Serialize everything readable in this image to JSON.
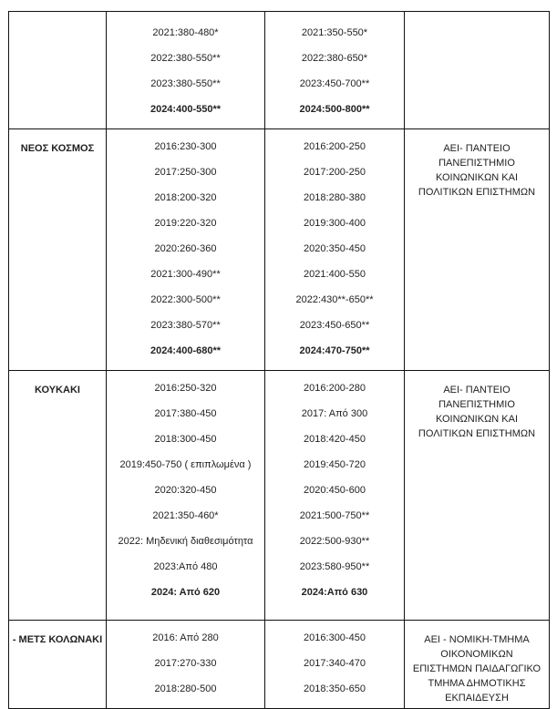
{
  "rows": [
    {
      "area": "",
      "col1": [
        {
          "text": "2021:380-480*"
        },
        {
          "text": "2022:380-550**"
        },
        {
          "text": "2023:380-550**"
        },
        {
          "text": "2024:400-550**",
          "bold": true
        }
      ],
      "col2": [
        {
          "text": "2021:350-550*"
        },
        {
          "text": "2022:380-650*"
        },
        {
          "text": "2023:450-700**"
        },
        {
          "text": "2024:500-800**",
          "bold": true
        }
      ],
      "institution": ""
    },
    {
      "area": "ΝΕΟΣ ΚΟΣΜΟΣ",
      "col1": [
        {
          "text": "2016:230-300"
        },
        {
          "text": "2017:250-300"
        },
        {
          "text": "2018:200-320"
        },
        {
          "text": "2019:220-320"
        },
        {
          "text": "2020:260-360"
        },
        {
          "text": "2021:300-490**"
        },
        {
          "text": "2022:300-500**"
        },
        {
          "text": "2023:380-570**"
        },
        {
          "text": "2024:400-680**",
          "bold": true
        }
      ],
      "col2": [
        {
          "text": "2016:200-250"
        },
        {
          "text": "2017:200-250"
        },
        {
          "text": "2018:280-380"
        },
        {
          "text": "2019:300-400"
        },
        {
          "text": "2020:350-450"
        },
        {
          "text": "2021:400-550"
        },
        {
          "text": "2022:430**-650**"
        },
        {
          "text": "2023:450-650**"
        },
        {
          "text": "2024:470-750**",
          "bold": true
        }
      ],
      "institution": "ΑΕΙ- ΠΑΝΤΕΙΟ ΠΑΝΕΠΙΣΤΗΜΙΟ ΚΟΙΝΩΝΙΚΩΝ ΚΑΙ ΠΟΛΙΤΙΚΩΝ ΕΠΙΣΤΗΜΩΝ"
    },
    {
      "area": "ΚΟΥΚΑΚΙ",
      "col1": [
        {
          "text": "2016:250-320"
        },
        {
          "text": "2017:380-450"
        },
        {
          "text": "2018:300-450"
        },
        {
          "text": "2019:450-750 ( επιπλωμένα )"
        },
        {
          "text": "2020:320-450"
        },
        {
          "text": "2021:350-460*"
        },
        {
          "text": "2022: Μηδενική διαθεσιμότητα"
        },
        {
          "text": "2023:Από 480"
        },
        {
          "text": "2024: Από 620",
          "bold": true
        }
      ],
      "col2": [
        {
          "text": "2016:200-280"
        },
        {
          "text": "2017: Από 300"
        },
        {
          "text": "2018:420-450"
        },
        {
          "text": "2019:450-720"
        },
        {
          "text": "2020:450-600"
        },
        {
          "text": "2021:500-750**"
        },
        {
          "text": "2022:500-930**"
        },
        {
          "text": "2023:580-950**"
        },
        {
          "text": "2024:Από 630",
          "bold": true
        }
      ],
      "institution": "ΑΕΙ- ΠΑΝΤΕΙΟ ΠΑΝΕΠΙΣΤΗΜΙΟ ΚΟΙΝΩΝΙΚΩΝ ΚΑΙ ΠΟΛΙΤΙΚΩΝ ΕΠΙΣΤΗΜΩΝ"
    },
    {
      "area": "- ΜΕΤΣ ΚΟΛΩΝΑΚΙ",
      "col1": [
        {
          "text": "2016: Από 280"
        },
        {
          "text": "2017:270-330"
        },
        {
          "text": "2018:280-500"
        }
      ],
      "col2": [
        {
          "text": "2016:300-450"
        },
        {
          "text": "2017:340-470"
        },
        {
          "text": "2018:350-650"
        }
      ],
      "institution": "ΑΕΙ - ΝΟΜΙΚΗ-ΤΜΗΜΑ ΟΙΚΟΝΟΜΙΚΩΝ ΕΠΙΣΤΗΜΩΝ ΠΑΙΔΑΓΩΓΙΚΟ ΤΜΗΜΑ ΔΗΜΟΤΙΚΗΣ ΕΚΠΑΙΔΕΥΣΗ"
    }
  ]
}
